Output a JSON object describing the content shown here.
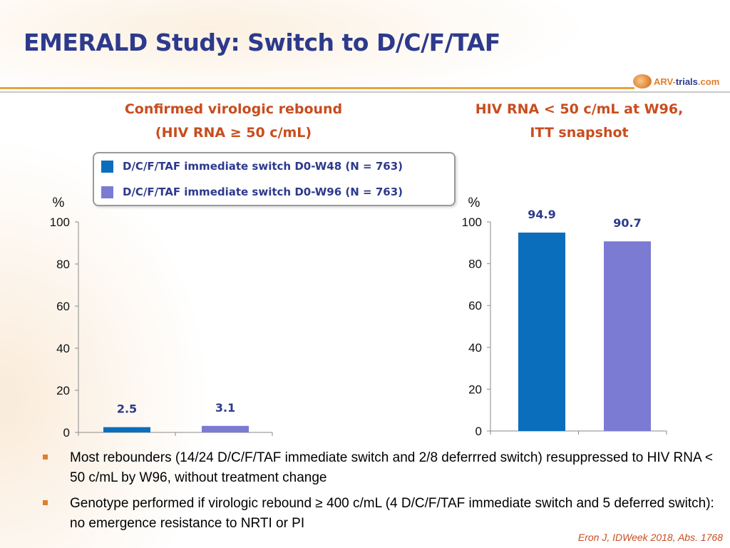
{
  "slide": {
    "title": "EMERALD Study: Switch to D/C/F/TAF",
    "logo": {
      "part1": "ARV-",
      "part2": "trials",
      "part3": ".com"
    },
    "colors": {
      "title": "#2d3a8c",
      "accent": "#c84d1f",
      "rule": "#e8a33d",
      "bullet": "#e07f2c"
    },
    "bullets": [
      "Most rebounders (14/24 D/C/F/TAF immediate switch and 2/8 deferrred switch) resuppressed to HIV RNA < 50 c/mL by W96, without treatment change",
      "Genotype performed if virologic rebound ≥ 400 c/mL (4 D/C/F/TAF immediate switch and 5 deferred switch): no emergence resistance to NRTI or PI"
    ],
    "citation": "Eron J, IDWeek 2018, Abs. 1768"
  },
  "legend": {
    "items": [
      {
        "label": "D/C/F/TAF immediate switch D0-W48 (N = 763)",
        "color": "#0a6ebd"
      },
      {
        "label": "D/C/F/TAF immediate switch D0-W96 (N = 763)",
        "color": "#7b7bd4"
      }
    ]
  },
  "chart_data": [
    {
      "type": "bar",
      "title_lines": [
        "Confirmed virologic rebound",
        "(HIV RNA ≥ 50 c/mL)"
      ],
      "ylabel": "%",
      "ylim": [
        0,
        100
      ],
      "yticks": [
        "0",
        "20",
        "40",
        "60",
        "80",
        "100"
      ],
      "series": [
        {
          "name": "D/C/F/TAF immediate switch D0-W48 (N = 763)",
          "value": 2.5,
          "label": "2.5",
          "color": "#0a6ebd"
        },
        {
          "name": "D/C/F/TAF immediate switch D0-W96 (N = 763)",
          "value": 3.1,
          "label": "3.1",
          "color": "#7b7bd4"
        }
      ]
    },
    {
      "type": "bar",
      "title_lines": [
        "HIV RNA < 50 c/mL at W96,",
        "ITT snapshot"
      ],
      "ylabel": "%",
      "ylim": [
        0,
        100
      ],
      "yticks": [
        "0",
        "20",
        "40",
        "60",
        "80",
        "100"
      ],
      "series": [
        {
          "name": "D/C/F/TAF immediate switch D0-W48 (N = 763)",
          "value": 94.9,
          "label": "94.9",
          "color": "#0a6ebd"
        },
        {
          "name": "D/C/F/TAF immediate switch D0-W96 (N = 763)",
          "value": 90.7,
          "label": "90.7",
          "color": "#7b7bd4"
        }
      ]
    }
  ]
}
